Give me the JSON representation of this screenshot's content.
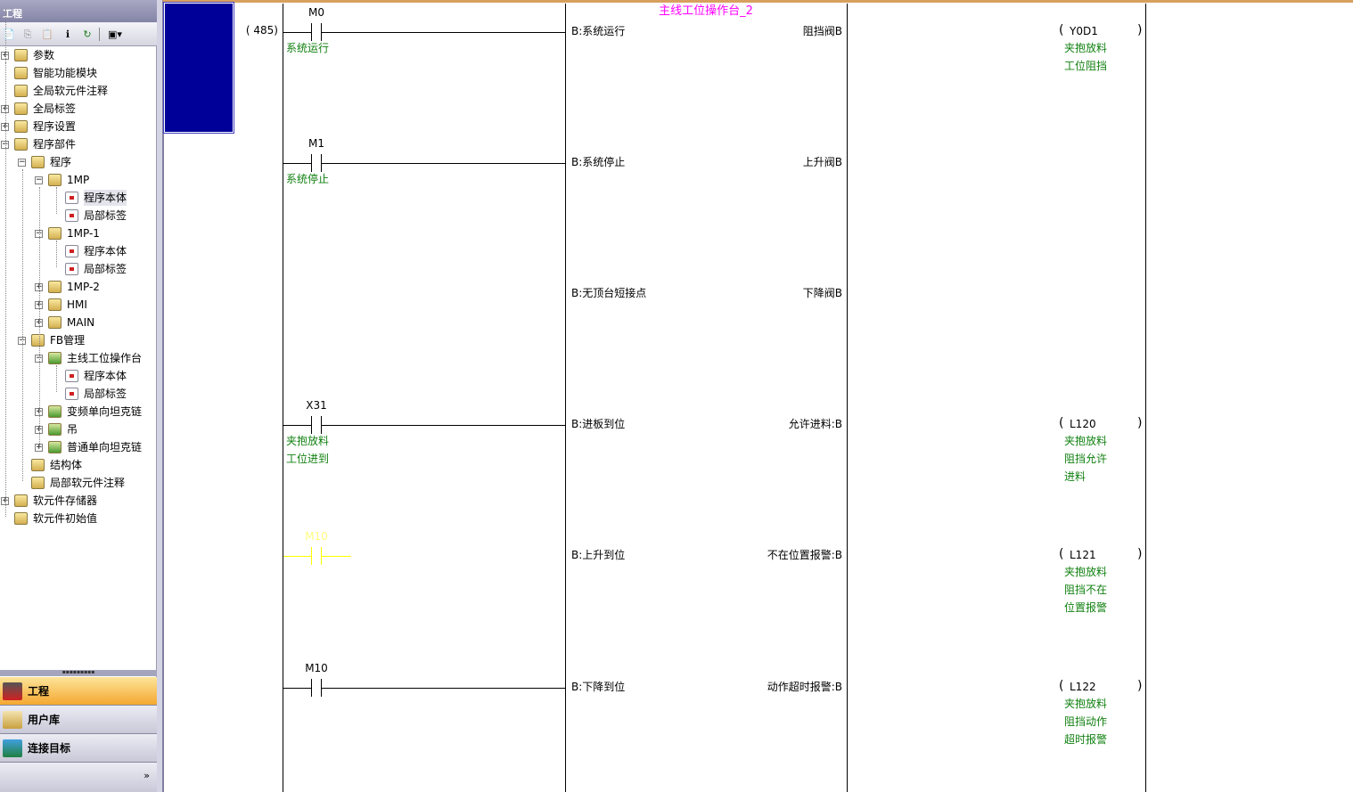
{
  "panel": {
    "title": "工程",
    "toolbar_icons": [
      "new-icon",
      "copy-icon",
      "paste-icon",
      "properties-icon",
      "refresh-icon",
      "device-icon"
    ]
  },
  "tree": [
    {
      "label": "参数",
      "level": 0,
      "toggle": "+"
    },
    {
      "label": "智能功能模块",
      "level": 0
    },
    {
      "label": "全局软元件注释",
      "level": 0
    },
    {
      "label": "全局标签",
      "level": 0,
      "toggle": "+"
    },
    {
      "label": "程序设置",
      "level": 0,
      "toggle": "+"
    },
    {
      "label": "程序部件",
      "level": 0,
      "toggle": "-"
    },
    {
      "label": "程序",
      "level": 1,
      "toggle": "-"
    },
    {
      "label": "1MP",
      "level": 2,
      "toggle": "-"
    },
    {
      "label": "程序本体",
      "level": 3,
      "doc": true,
      "selected": true
    },
    {
      "label": "局部标签",
      "level": 3,
      "doc": true
    },
    {
      "label": "1MP-1",
      "level": 2,
      "toggle": "-"
    },
    {
      "label": "程序本体",
      "level": 3,
      "doc": true
    },
    {
      "label": "局部标签",
      "level": 3,
      "doc": true
    },
    {
      "label": "1MP-2",
      "level": 2,
      "toggle": "+"
    },
    {
      "label": "HMI",
      "level": 2,
      "toggle": "+"
    },
    {
      "label": "MAIN",
      "level": 2,
      "toggle": "+"
    },
    {
      "label": "FB管理",
      "level": 1,
      "toggle": "-"
    },
    {
      "label": "主线工位操作台",
      "level": 2,
      "toggle": "-",
      "fold": true
    },
    {
      "label": "程序本体",
      "level": 3,
      "doc": true
    },
    {
      "label": "局部标签",
      "level": 3,
      "doc": true
    },
    {
      "label": "变频单向坦克链",
      "level": 2,
      "toggle": "+",
      "fold": true
    },
    {
      "label": "吊",
      "level": 2,
      "toggle": "+",
      "fold": true
    },
    {
      "label": "普通单向坦克链",
      "level": 2,
      "toggle": "+",
      "fold": true
    },
    {
      "label": "结构体",
      "level": 1
    },
    {
      "label": "局部软元件注释",
      "level": 1
    },
    {
      "label": "软元件存储器",
      "level": 0,
      "toggle": "+"
    },
    {
      "label": "软元件初始值",
      "level": 0
    }
  ],
  "nav": [
    {
      "label": "工程",
      "active": true
    },
    {
      "label": "用户库"
    },
    {
      "label": "连接目标"
    }
  ],
  "nav_more": "»",
  "ladder": {
    "step": "(   485)",
    "fb_name": "主线工位操作台_2",
    "colors": {
      "fb_name": "#ff00ff",
      "comment": "#108010",
      "selection": "#000099"
    },
    "rungs": [
      {
        "contact": "M0",
        "contact_comment": [
          "系统运行"
        ],
        "input": "B:系统运行",
        "output": "阻挡阀B",
        "coil": "Y0D1",
        "coil_comment": [
          "夹抱放料",
          "工位阻挡"
        ]
      },
      {
        "contact": "M1",
        "contact_comment": [
          "系统停止"
        ],
        "input": "B:系统停止",
        "output": "上升阀B"
      },
      {
        "input": "B:无顶台短接点",
        "output": "下降阀B"
      },
      {
        "contact": "X31",
        "contact_comment": [
          "夹抱放料",
          "工位进到"
        ],
        "input": "B:进板到位",
        "output": "允许进料:B",
        "coil": "L120",
        "coil_comment": [
          "夹抱放料",
          "阻挡允许",
          "进料"
        ]
      },
      {
        "contact": "M10",
        "selected": true,
        "input": "B:上升到位",
        "output": "不在位置报警:B",
        "coil": "L121",
        "coil_comment": [
          "夹抱放料",
          "阻挡不在",
          "位置报警"
        ]
      },
      {
        "contact": "M10",
        "input": "B:下降到位",
        "output": "动作超时报警:B",
        "coil": "L122",
        "coil_comment": [
          "夹抱放料",
          "阻挡动作",
          "超时报警"
        ]
      }
    ]
  }
}
